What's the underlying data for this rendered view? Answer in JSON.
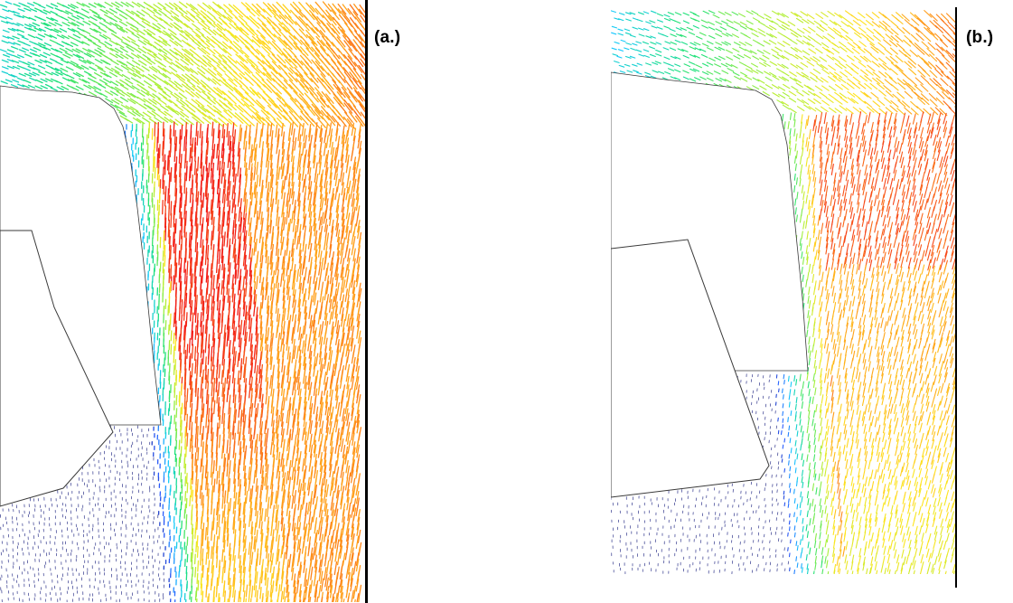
{
  "figure": {
    "panels": [
      {
        "label": "(a.)",
        "arrow_field_density": "high"
      },
      {
        "label": "(b.)",
        "arrow_field_density": "medium"
      }
    ],
    "colormap": [
      "#1a2a9c",
      "#2a5cff",
      "#16c9ff",
      "#19e07a",
      "#a8f03a",
      "#ffe51f",
      "#ff9a1a",
      "#f21c18"
    ],
    "geometry_outline_color": "#3a3a3a",
    "background_color": "#ffffff"
  }
}
